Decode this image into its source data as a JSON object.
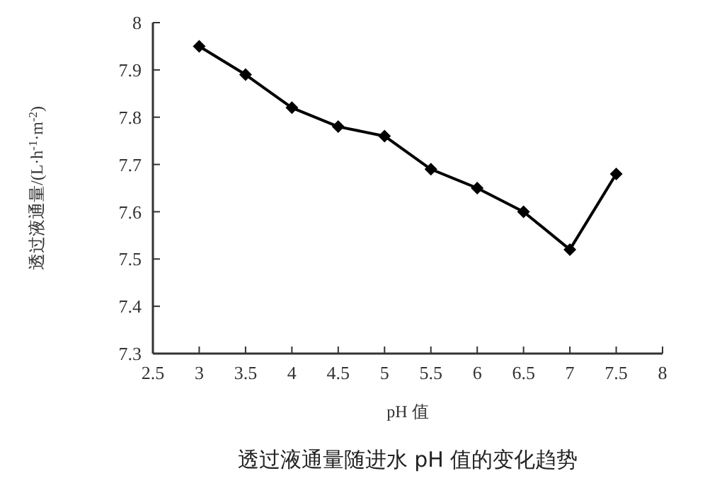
{
  "chart_data": {
    "type": "line",
    "xlabel": "pH 值",
    "ylabel": "透过液通量/(L·h$^{-1}$·m$^{-2}$)",
    "annotations": [
      "透过液通量随进水 pH 值的变化趋势"
    ],
    "x": [
      3,
      3.5,
      4,
      4.5,
      5,
      5.5,
      6,
      6.5,
      7,
      7.5
    ],
    "series": [
      {
        "color": "#000000",
        "values": [
          7.95,
          7.89,
          7.82,
          7.78,
          7.76,
          7.69,
          7.65,
          7.6,
          7.52,
          7.68
        ]
      }
    ],
    "xlim": [
      2.5,
      8
    ],
    "xticks": [
      2.5,
      3,
      3.5,
      4,
      4.5,
      5,
      5.5,
      6,
      6.5,
      7,
      7.5,
      8
    ],
    "ylim": [
      7.3,
      8
    ],
    "yticks": [
      7.3,
      7.4,
      7.5,
      7.6,
      7.7,
      7.8,
      7.9,
      8
    ],
    "marker": "diamond",
    "line_style": "solid"
  }
}
